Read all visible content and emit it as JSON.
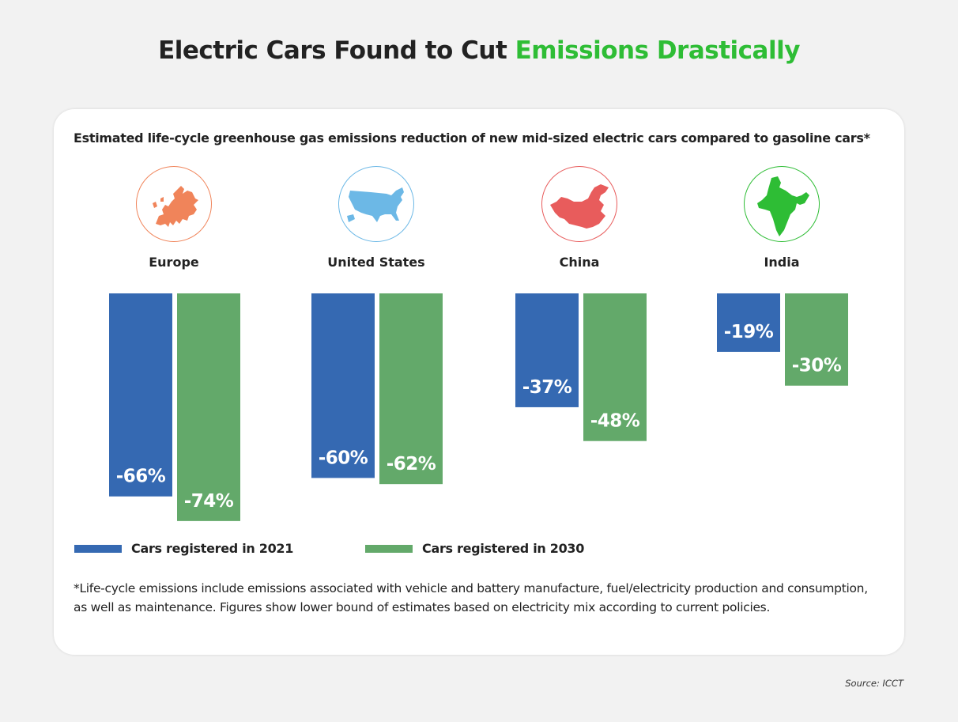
{
  "title": {
    "main": "Electric Cars Found to Cut",
    "accent": "Emissions Drastically"
  },
  "colors": {
    "accent": "#2ebd35",
    "series_2021": "#3569b2",
    "series_2030": "#63a96a",
    "europe": "#f0845a",
    "united_states": "#6cb8e6",
    "china": "#e85c5c",
    "india": "#2ebd35"
  },
  "chart_data": {
    "type": "bar",
    "title": "Estimated life-cycle greenhouse gas emissions reduction of new mid-sized electric cars compared to gasoline cars*",
    "categories": [
      "Europe",
      "United States",
      "China",
      "India"
    ],
    "category_icons": [
      "europe-map-icon",
      "usa-map-icon",
      "china-map-icon",
      "india-map-icon"
    ],
    "series": [
      {
        "name": "Cars registered in 2021",
        "values": [
          -66,
          -60,
          -37,
          -19
        ],
        "labels": [
          "-66%",
          "-60%",
          "-37%",
          "-19%"
        ]
      },
      {
        "name": "Cars registered in 2030",
        "values": [
          -74,
          -62,
          -48,
          -30
        ],
        "labels": [
          "-74%",
          "-62%",
          "-48%",
          "-30%"
        ]
      }
    ],
    "xlabel": "",
    "ylabel": "",
    "ylim": [
      -74,
      0
    ],
    "grid": false,
    "legend": "bottom-left"
  },
  "footnote": "*Life-cycle emissions include emissions associated with vehicle and battery manufacture, fuel/electricity production and consumption, as well as maintenance. Figures show lower bound of estimates based on electricity mix according to current policies.",
  "source": "Source: ICCT"
}
